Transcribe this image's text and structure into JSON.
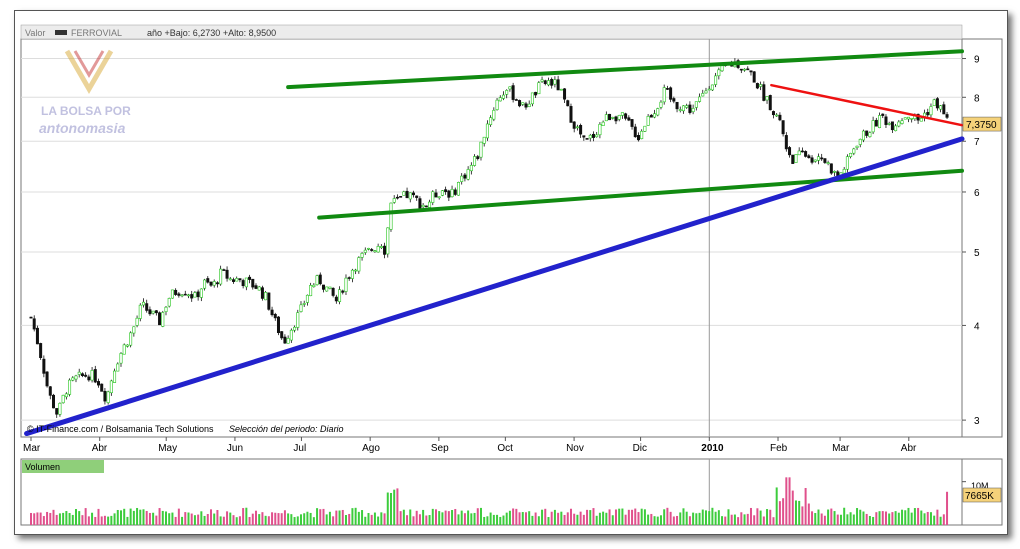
{
  "header": {
    "valor_label": "Valor",
    "ticker": "FERROVIAL",
    "range_text": "año +Bajo: 6,2730 +Alto: 8,9500"
  },
  "logo": {
    "line1": "LA BOLSA POR",
    "line2": "antonomasia"
  },
  "credit": {
    "source": "© IT-Finance.com / Bolsamania Tech Solutions",
    "period": "Selección del periodo: Diario"
  },
  "volume": {
    "label": "Volumen",
    "scale_label": "10M",
    "current_label": "7665K"
  },
  "colors": {
    "up": "#22c41a",
    "down": "#111111",
    "green_channel": "#118a11",
    "blue_trend": "#2222cc",
    "red_trend": "#ee1111",
    "price_badge": "#f5d27a",
    "vol_pink": "#e0508c",
    "vol_green": "#3ccc3c"
  },
  "chart_data": {
    "type": "candlestick",
    "title": "",
    "y_scale": "log",
    "ylim": [
      2.85,
      9.55
    ],
    "y_ticks": [
      3,
      4,
      5,
      6,
      7,
      8,
      9
    ],
    "x_range_days": [
      0,
      420
    ],
    "x_months": [
      {
        "label": "Mar",
        "day": 0
      },
      {
        "label": "Abr",
        "day": 31
      },
      {
        "label": "May",
        "day": 61
      },
      {
        "label": "Jun",
        "day": 92
      },
      {
        "label": "Jul",
        "day": 122
      },
      {
        "label": "Ago",
        "day": 153
      },
      {
        "label": "Sep",
        "day": 184
      },
      {
        "label": "Oct",
        "day": 214
      },
      {
        "label": "Nov",
        "day": 245
      },
      {
        "label": "Dic",
        "day": 275
      },
      {
        "label": "2010",
        "day": 306
      },
      {
        "label": "Feb",
        "day": 337
      },
      {
        "label": "Mar",
        "day": 365
      },
      {
        "label": "Abr",
        "day": 396
      }
    ],
    "year_divider_day": 306,
    "last_price": 7.375,
    "last_price_label": "7,3750",
    "price_path": [
      [
        0,
        4.1
      ],
      [
        4,
        3.7
      ],
      [
        8,
        3.25
      ],
      [
        12,
        3.05
      ],
      [
        16,
        3.3
      ],
      [
        20,
        3.4
      ],
      [
        26,
        3.45
      ],
      [
        30,
        3.4
      ],
      [
        34,
        3.2
      ],
      [
        38,
        3.55
      ],
      [
        42,
        3.75
      ],
      [
        46,
        3.95
      ],
      [
        50,
        4.25
      ],
      [
        54,
        4.15
      ],
      [
        58,
        4.05
      ],
      [
        62,
        4.35
      ],
      [
        66,
        4.45
      ],
      [
        70,
        4.45
      ],
      [
        74,
        4.35
      ],
      [
        78,
        4.55
      ],
      [
        82,
        4.5
      ],
      [
        86,
        4.7
      ],
      [
        90,
        4.6
      ],
      [
        94,
        4.6
      ],
      [
        98,
        4.55
      ],
      [
        102,
        4.5
      ],
      [
        106,
        4.35
      ],
      [
        110,
        4.05
      ],
      [
        114,
        3.8
      ],
      [
        118,
        4.0
      ],
      [
        122,
        4.2
      ],
      [
        126,
        4.5
      ],
      [
        130,
        4.6
      ],
      [
        134,
        4.45
      ],
      [
        138,
        4.3
      ],
      [
        142,
        4.6
      ],
      [
        146,
        4.8
      ],
      [
        150,
        4.95
      ],
      [
        154,
        5.05
      ],
      [
        158,
        5.15
      ],
      [
        160,
        5.0
      ],
      [
        162,
        5.8
      ],
      [
        166,
        5.85
      ],
      [
        170,
        5.95
      ],
      [
        174,
        5.85
      ],
      [
        178,
        5.75
      ],
      [
        182,
        5.95
      ],
      [
        186,
        6.05
      ],
      [
        190,
        5.95
      ],
      [
        194,
        6.25
      ],
      [
        198,
        6.45
      ],
      [
        202,
        6.75
      ],
      [
        204,
        7.1
      ],
      [
        206,
        7.4
      ],
      [
        210,
        7.9
      ],
      [
        214,
        8.2
      ],
      [
        218,
        8.05
      ],
      [
        222,
        7.75
      ],
      [
        226,
        8.0
      ],
      [
        230,
        8.3
      ],
      [
        234,
        8.4
      ],
      [
        238,
        8.25
      ],
      [
        242,
        7.7
      ],
      [
        246,
        7.3
      ],
      [
        250,
        6.95
      ],
      [
        254,
        7.15
      ],
      [
        258,
        7.45
      ],
      [
        262,
        7.6
      ],
      [
        266,
        7.55
      ],
      [
        270,
        7.35
      ],
      [
        274,
        7.1
      ],
      [
        278,
        7.5
      ],
      [
        282,
        7.75
      ],
      [
        286,
        8.15
      ],
      [
        290,
        7.85
      ],
      [
        294,
        7.8
      ],
      [
        298,
        7.7
      ],
      [
        302,
        7.95
      ],
      [
        306,
        8.35
      ],
      [
        310,
        8.55
      ],
      [
        314,
        8.8
      ],
      [
        318,
        8.9
      ],
      [
        322,
        8.75
      ],
      [
        326,
        8.5
      ],
      [
        330,
        8.1
      ],
      [
        334,
        7.8
      ],
      [
        338,
        7.4
      ],
      [
        341,
        6.85
      ],
      [
        344,
        6.6
      ],
      [
        348,
        6.75
      ],
      [
        352,
        6.65
      ],
      [
        356,
        6.7
      ],
      [
        360,
        6.5
      ],
      [
        364,
        6.25
      ],
      [
        368,
        6.55
      ],
      [
        372,
        6.95
      ],
      [
        376,
        7.15
      ],
      [
        380,
        7.35
      ],
      [
        384,
        7.55
      ],
      [
        388,
        7.35
      ],
      [
        392,
        7.5
      ],
      [
        396,
        7.6
      ],
      [
        400,
        7.45
      ],
      [
        404,
        7.65
      ],
      [
        408,
        7.9
      ],
      [
        412,
        7.6
      ],
      [
        414,
        7.375
      ]
    ],
    "trendlines": [
      {
        "kind": "channel-upper",
        "from": [
          116,
          8.25
        ],
        "to": [
          420,
          9.2
        ]
      },
      {
        "kind": "channel-lower",
        "from": [
          130,
          5.55
        ],
        "to": [
          420,
          6.4
        ]
      },
      {
        "kind": "support",
        "from": [
          -2,
          2.88
        ],
        "to": [
          420,
          7.05
        ]
      },
      {
        "kind": "resistance",
        "from": [
          334,
          8.3
        ],
        "to": [
          420,
          7.35
        ]
      }
    ],
    "volume_ylim": [
      0,
      12
    ],
    "volume_marks": [
      {
        "label": "10M",
        "value": 10
      }
    ],
    "volume_current": 7.665
  }
}
